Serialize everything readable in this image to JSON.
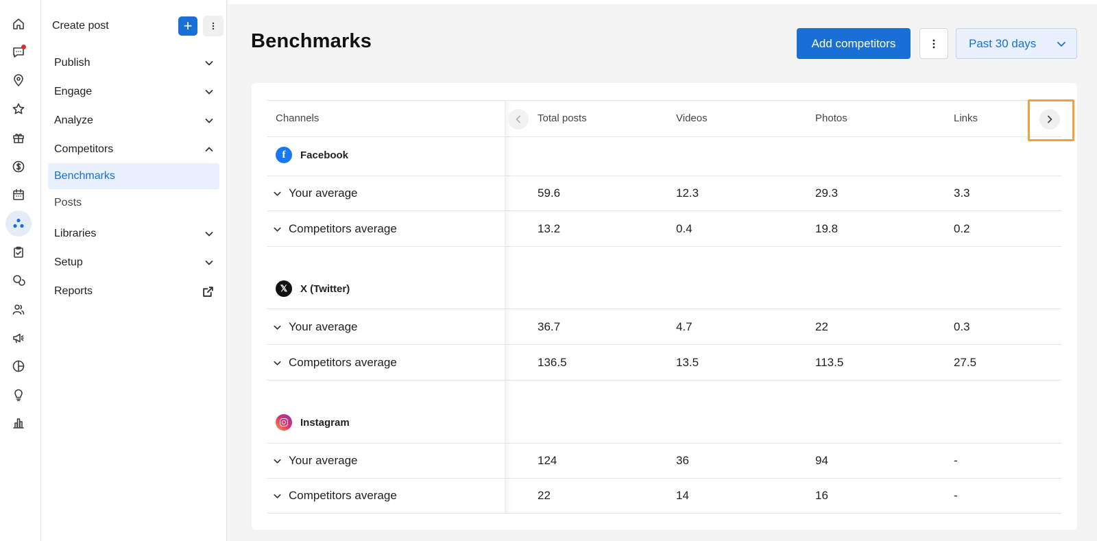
{
  "rail": {
    "items": [
      {
        "icon": "home-icon"
      },
      {
        "icon": "inbox-icon",
        "notification": true
      },
      {
        "icon": "location-pin-icon"
      },
      {
        "icon": "star-icon"
      },
      {
        "icon": "gift-icon"
      },
      {
        "icon": "dollar-icon"
      },
      {
        "icon": "calendar-icon"
      },
      {
        "icon": "competitors-icon",
        "active": true
      },
      {
        "icon": "task-icon"
      },
      {
        "icon": "chat-icon"
      },
      {
        "icon": "people-icon"
      },
      {
        "icon": "megaphone-icon"
      },
      {
        "icon": "pie-chart-icon"
      },
      {
        "icon": "lightbulb-icon"
      },
      {
        "icon": "bar-chart-icon"
      }
    ]
  },
  "sidebar": {
    "create_label": "Create post",
    "plus_label": "+",
    "items": [
      {
        "label": "Publish",
        "state": "collapsed"
      },
      {
        "label": "Engage",
        "state": "collapsed"
      },
      {
        "label": "Analyze",
        "state": "collapsed"
      },
      {
        "label": "Competitors",
        "state": "expanded"
      },
      {
        "label": "Benchmarks",
        "state": "active"
      },
      {
        "label": "Posts",
        "state": "sub"
      },
      {
        "label": "Libraries",
        "state": "collapsed"
      },
      {
        "label": "Setup",
        "state": "collapsed"
      },
      {
        "label": "Reports",
        "state": "external"
      }
    ]
  },
  "header": {
    "title": "Benchmarks",
    "add_label": "Add competitors",
    "range_label": "Past 30 days"
  },
  "table": {
    "columns": [
      "Channels",
      "Total posts",
      "Videos",
      "Photos",
      "Links"
    ],
    "groups": [
      {
        "channel": "Facebook",
        "rows": [
          {
            "label": "Your average",
            "values": [
              "59.6",
              "12.3",
              "29.3",
              "3.3"
            ]
          },
          {
            "label": "Competitors average",
            "values": [
              "13.2",
              "0.4",
              "19.8",
              "0.2"
            ]
          }
        ]
      },
      {
        "channel": "X (Twitter)",
        "rows": [
          {
            "label": "Your average",
            "values": [
              "36.7",
              "4.7",
              "22",
              "0.3"
            ]
          },
          {
            "label": "Competitors average",
            "values": [
              "136.5",
              "13.5",
              "113.5",
              "27.5"
            ]
          }
        ]
      },
      {
        "channel": "Instagram",
        "rows": [
          {
            "label": "Your average",
            "values": [
              "124",
              "36",
              "94",
              "-"
            ]
          },
          {
            "label": "Competitors average",
            "values": [
              "22",
              "14",
              "16",
              "-"
            ]
          }
        ]
      }
    ]
  },
  "colors": {
    "accent": "#1a6fd6",
    "highlight": "#f5a03a",
    "facebook": "#1877f2"
  }
}
